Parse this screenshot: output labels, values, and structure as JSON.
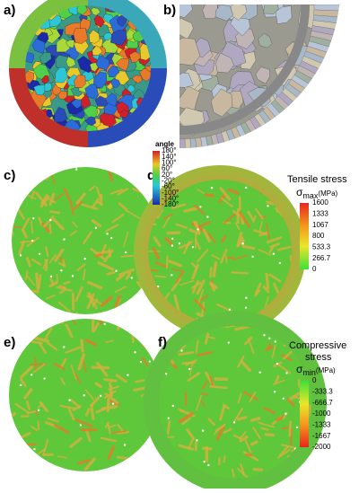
{
  "panels": [
    {
      "label": "a)"
    },
    {
      "label": "b)"
    },
    {
      "label": "c)"
    },
    {
      "label": "d)"
    },
    {
      "label": "e)"
    },
    {
      "label": "f)"
    }
  ],
  "colorbars": [
    {
      "title": "angle",
      "ticks": [
        "180°",
        "140°",
        "100°",
        "60°",
        "20°",
        "-20°",
        "-60°",
        "-100°",
        "-140°",
        "-180°"
      ]
    },
    {
      "title": "Tensile stress",
      "symbol": "σ",
      "subscript": "max",
      "unit": "(MPa)",
      "ticks": [
        "1600",
        "1333",
        "1067",
        "800",
        "533.3",
        "266.7",
        "0"
      ]
    },
    {
      "title_lines": [
        "Compressive",
        "stress"
      ],
      "symbol": "σ",
      "subscript": "min",
      "unit": "(MPa)",
      "ticks": [
        "0",
        "-333.3",
        "-666.7",
        "-1000",
        "-1333",
        "-1667",
        "-2000"
      ]
    }
  ]
}
